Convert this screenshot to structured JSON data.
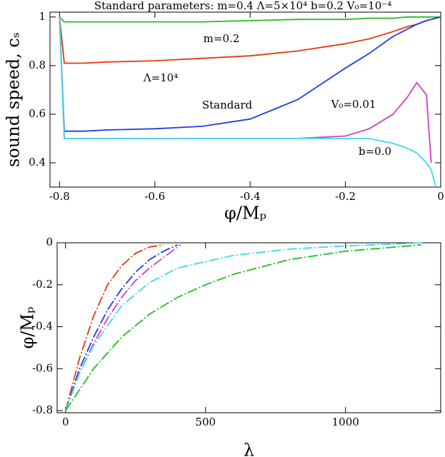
{
  "chart_data": [
    {
      "type": "line",
      "title": "Standard parameters: m=0.4 Λ=5×10⁴ b=0.2 V₀=10⁻⁴",
      "x_label": "φ/Mₚ",
      "y_label": "sound speed, cₛ",
      "xlim": [
        -0.82,
        0
      ],
      "xticks": [
        -0.8,
        -0.6,
        -0.4,
        -0.2,
        0
      ],
      "ylim": [
        0.3,
        1.02
      ],
      "yticks": [
        0.4,
        0.6,
        0.8,
        1
      ],
      "x": [
        -0.8,
        -0.79,
        -0.75,
        -0.7,
        -0.6,
        -0.5,
        -0.4,
        -0.3,
        -0.2,
        -0.15,
        -0.1,
        -0.07,
        -0.05,
        -0.03,
        -0.02,
        -0.01,
        0
      ],
      "series": [
        {
          "name": "m=0.2",
          "color": "#20c020",
          "values": [
            1,
            0.98,
            0.98,
            0.98,
            0.98,
            0.98,
            0.985,
            0.99,
            0.99,
            0.995,
            0.995,
            1,
            1,
            1,
            1,
            1,
            1
          ]
        },
        {
          "name": "Λ=10⁴",
          "color": "#e8380d",
          "values": [
            1,
            0.81,
            0.81,
            0.815,
            0.82,
            0.83,
            0.84,
            0.86,
            0.89,
            0.91,
            0.94,
            0.96,
            0.97,
            0.985,
            0.99,
            0.995,
            1
          ]
        },
        {
          "name": "Standard",
          "color": "#1e3ce8",
          "values": [
            1,
            0.53,
            0.53,
            0.535,
            0.54,
            0.55,
            0.58,
            0.66,
            0.79,
            0.85,
            0.92,
            0.95,
            0.97,
            0.985,
            0.99,
            0.995,
            1
          ]
        },
        {
          "name": "V₀=0.01",
          "color": "#d040c0",
          "values": [
            1,
            0.5,
            0.5,
            0.5,
            0.5,
            0.5,
            0.5,
            0.5,
            0.51,
            0.54,
            0.6,
            0.67,
            0.73,
            0.68,
            0.4,
            null,
            null
          ]
        },
        {
          "name": "b=0.0",
          "color": "#40d8e8",
          "values": [
            1,
            0.5,
            0.5,
            0.5,
            0.5,
            0.5,
            0.5,
            0.5,
            0.5,
            0.5,
            0.48,
            0.46,
            0.44,
            0.4,
            0.37,
            0.3,
            null
          ]
        }
      ]
    },
    {
      "type": "line",
      "x_label": "λ",
      "y_label": "φ/Mₚ",
      "xlim": [
        -30,
        1340
      ],
      "xticks": [
        0,
        500,
        1000
      ],
      "ylim": [
        -0.81,
        0
      ],
      "yticks": [
        -0.8,
        -0.6,
        -0.4,
        -0.2,
        0
      ],
      "series": [
        {
          "color": "#e8380d",
          "x": [
            0,
            20,
            50,
            100,
            150,
            200,
            250,
            300,
            350
          ],
          "values": [
            -0.8,
            -0.7,
            -0.55,
            -0.35,
            -0.2,
            -0.11,
            -0.05,
            -0.02,
            -0.01
          ]
        },
        {
          "color": "#1e3ce8",
          "x": [
            0,
            50,
            100,
            150,
            200,
            250,
            300,
            350,
            400
          ],
          "values": [
            -0.8,
            -0.6,
            -0.45,
            -0.32,
            -0.22,
            -0.14,
            -0.08,
            -0.04,
            -0.01
          ]
        },
        {
          "color": "#d040c0",
          "x": [
            0,
            50,
            100,
            150,
            200,
            250,
            300,
            350,
            410
          ],
          "values": [
            -0.8,
            -0.62,
            -0.48,
            -0.36,
            -0.26,
            -0.18,
            -0.12,
            -0.07,
            -0.01
          ]
        },
        {
          "color": "#40d8e8",
          "x": [
            0,
            50,
            100,
            200,
            300,
            400,
            600,
            800,
            1000,
            1280
          ],
          "values": [
            -0.8,
            -0.62,
            -0.49,
            -0.3,
            -0.19,
            -0.12,
            -0.06,
            -0.03,
            -0.015,
            0
          ]
        },
        {
          "color": "#20c020",
          "x": [
            0,
            100,
            200,
            300,
            400,
            500,
            600,
            800,
            1000,
            1270
          ],
          "values": [
            -0.8,
            -0.6,
            -0.45,
            -0.34,
            -0.26,
            -0.2,
            -0.15,
            -0.08,
            -0.04,
            -0.01
          ]
        }
      ]
    }
  ]
}
